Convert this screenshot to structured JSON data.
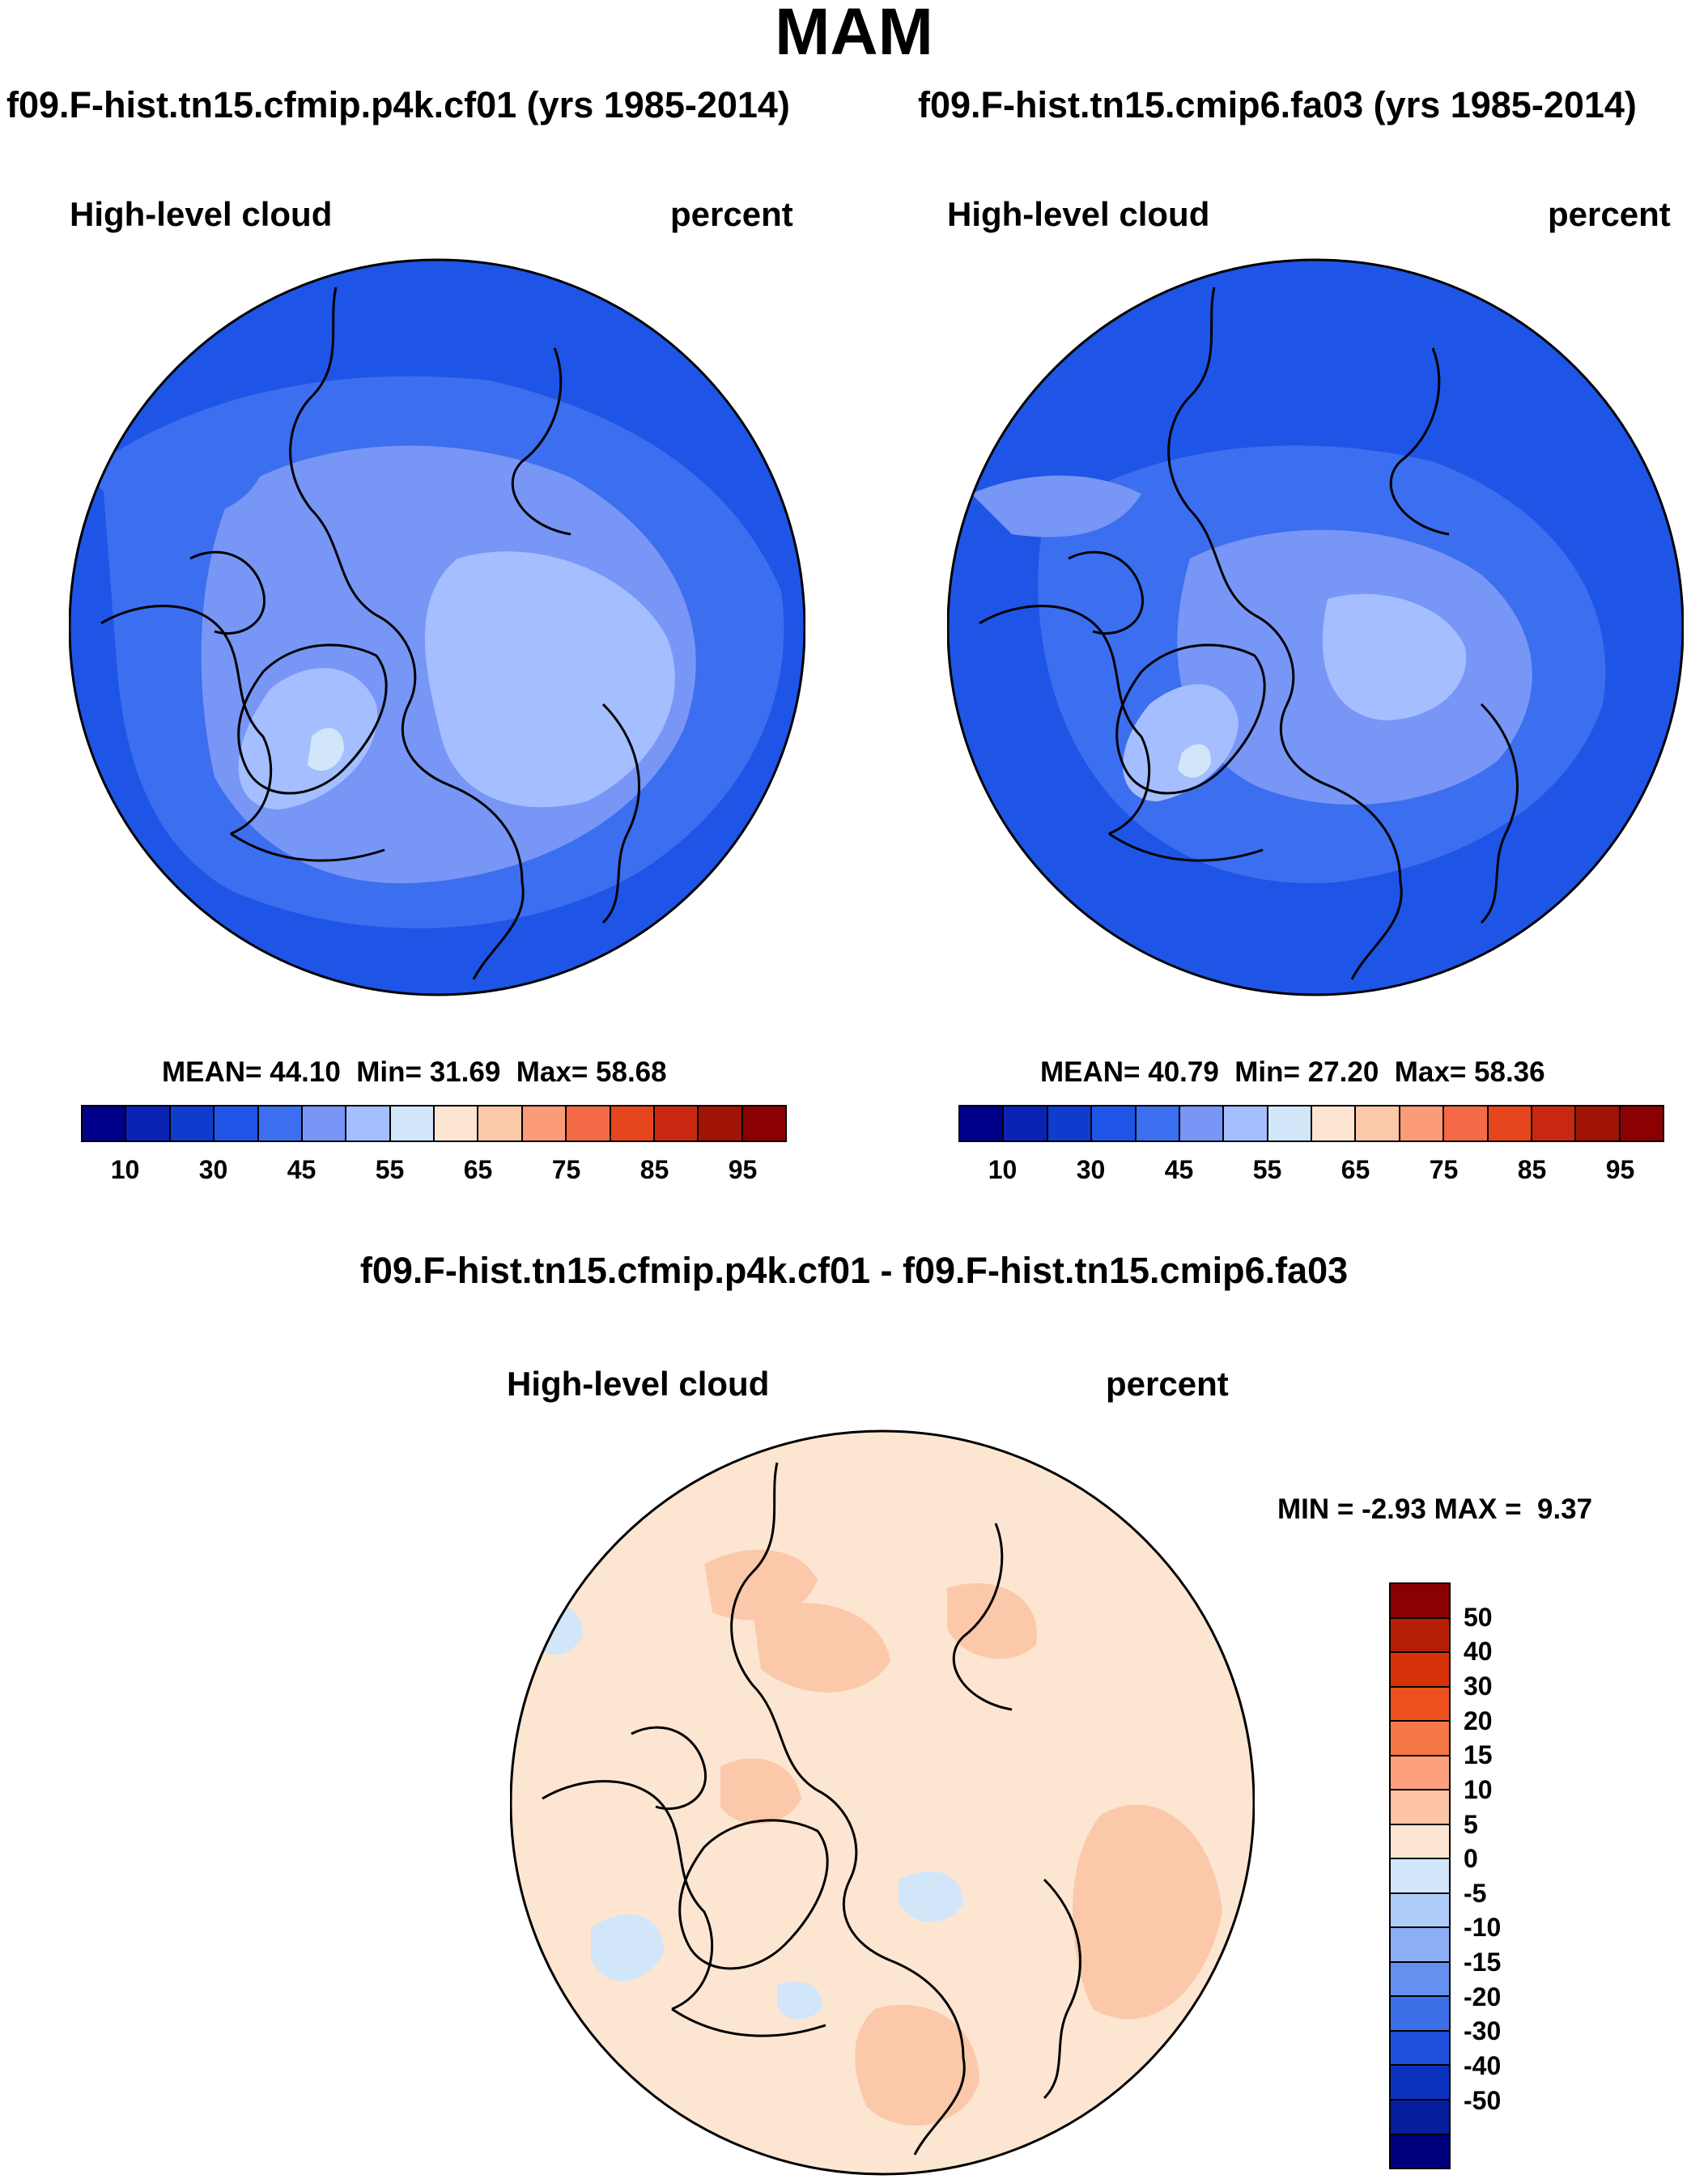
{
  "figure_title": "MAM",
  "chart_data": [
    {
      "type": "heatmap",
      "panel": "top-left",
      "title": "f09.F-hist.tn15.cfmip.p4k.cf01 (yrs 1985-2014)",
      "variable": "High-level cloud",
      "units": "percent",
      "projection": "north polar stereographic",
      "stats": {
        "mean_label": "MEAN=",
        "mean": "44.10",
        "min_label": "Min=",
        "min": "31.69",
        "max_label": "Max=",
        "max": "58.68"
      },
      "colorbar_ticks": [
        "10",
        "30",
        "45",
        "55",
        "65",
        "75",
        "85",
        "95"
      ],
      "colors": [
        "#00008b",
        "#0a23b4",
        "#0f3ccd",
        "#1e55e6",
        "#3c6ef0",
        "#7896f5",
        "#a5beff",
        "#d2e6fa",
        "#fce6d2",
        "#fcc8aa",
        "#fc9b78",
        "#f56a46",
        "#e6461e",
        "#c8280f",
        "#a01405",
        "#8b0000"
      ]
    },
    {
      "type": "heatmap",
      "panel": "top-right",
      "title": "f09.F-hist.tn15.cmip6.fa03 (yrs 1985-2014)",
      "variable": "High-level cloud",
      "units": "percent",
      "projection": "north polar stereographic",
      "stats": {
        "mean_label": "MEAN=",
        "mean": "40.79",
        "min_label": "Min=",
        "min": "27.20",
        "max_label": "Max=",
        "max": "58.36"
      },
      "colorbar_ticks": [
        "10",
        "30",
        "45",
        "55",
        "65",
        "75",
        "85",
        "95"
      ],
      "colors": [
        "#00008b",
        "#0a23b4",
        "#0f3ccd",
        "#1e55e6",
        "#3c6ef0",
        "#7896f5",
        "#a5beff",
        "#d2e6fa",
        "#fce6d2",
        "#fcc8aa",
        "#fc9b78",
        "#f56a46",
        "#e6461e",
        "#c8280f",
        "#a01405",
        "#8b0000"
      ]
    },
    {
      "type": "heatmap",
      "panel": "bottom",
      "title": "f09.F-hist.tn15.cfmip.p4k.cf01 - f09.F-hist.tn15.cmip6.fa03",
      "variable": "High-level cloud",
      "units": "percent",
      "projection": "north polar stereographic",
      "stats": {
        "min_label": "MIN =",
        "min": "-2.93",
        "max_label": "MAX =",
        "max": "9.37"
      },
      "colorbar_ticks": [
        "50",
        "40",
        "30",
        "20",
        "15",
        "10",
        "5",
        "0",
        "-5",
        "-10",
        "-15",
        "-20",
        "-30",
        "-40",
        "-50"
      ],
      "colors": [
        "#8b0000",
        "#b41e05",
        "#d7320a",
        "#eb501e",
        "#f57846",
        "#fca07d",
        "#fcc3a5",
        "#fce6d2",
        "#d2e6fa",
        "#afcdfa",
        "#8caff5",
        "#6491f0",
        "#3c6ee6",
        "#1e50dc",
        "#0a32be",
        "#051e9b",
        "#00007d"
      ]
    }
  ]
}
